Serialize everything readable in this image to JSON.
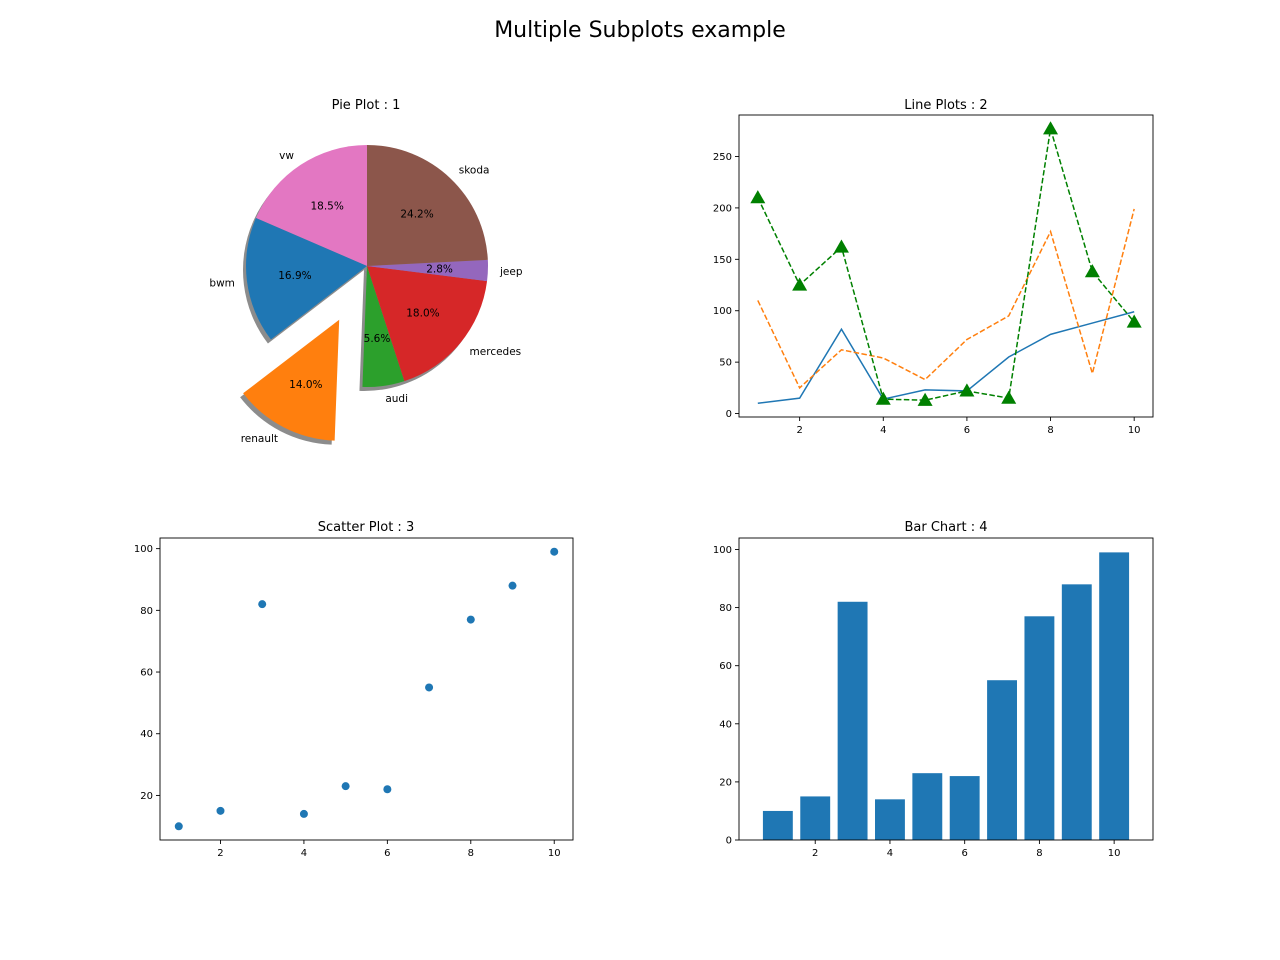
{
  "figure": {
    "title": "Multiple Subplots example"
  },
  "chart_data": [
    {
      "type": "pie",
      "title": "Pie Plot :  1",
      "labels": [
        "vw",
        "bwm",
        "renault",
        "audi",
        "mercedes",
        "jeep",
        "skoda"
      ],
      "values": [
        18.5,
        16.9,
        14.0,
        5.6,
        18.0,
        2.8,
        24.2
      ],
      "value_labels": [
        "18.5%",
        "16.9%",
        "14.0%",
        "5.6%",
        "18.0%",
        "2.8%",
        "24.2%"
      ],
      "exploded": [
        "renault"
      ],
      "shadow": true,
      "colors": [
        "#e377c2",
        "#1f77b4",
        "#ff7f0e",
        "#2ca02c",
        "#d62728",
        "#9467bd",
        "#8c564b"
      ]
    },
    {
      "type": "line",
      "title": "Line Plots : 2",
      "x": [
        1,
        2,
        3,
        4,
        5,
        6,
        7,
        8,
        9,
        10
      ],
      "series": [
        {
          "values": [
            10,
            15,
            82,
            14,
            23,
            22,
            55,
            77,
            88,
            99
          ],
          "color": "#1f77b4",
          "style": "solid"
        },
        {
          "values": [
            110,
            25,
            62,
            54,
            33,
            72,
            95,
            177,
            39,
            199
          ],
          "color": "#ff7f0e",
          "style": "dashed"
        },
        {
          "values": [
            210,
            125,
            162,
            14,
            13,
            22,
            15,
            277,
            138,
            89
          ],
          "color": "#008000",
          "style": "dashed",
          "marker": "triangle"
        }
      ],
      "xlim": [
        0.55,
        10.45
      ],
      "ylim": [
        -3.35,
        290.35
      ],
      "xticks": [
        "2",
        "4",
        "6",
        "8",
        "10"
      ],
      "yticks": [
        "0",
        "50",
        "100",
        "150",
        "200",
        "250"
      ],
      "grid": false
    },
    {
      "type": "scatter",
      "title": "Scatter Plot : 3",
      "x": [
        1,
        2,
        3,
        4,
        5,
        6,
        7,
        8,
        9,
        10
      ],
      "y": [
        10,
        15,
        82,
        14,
        23,
        22,
        55,
        77,
        88,
        99
      ],
      "color": "#1f77b4",
      "xlim": [
        0.55,
        10.45
      ],
      "ylim": [
        5.55,
        103.45
      ],
      "xticks": [
        "2",
        "4",
        "6",
        "8",
        "10"
      ],
      "yticks": [
        "20",
        "40",
        "60",
        "80",
        "100"
      ],
      "grid": false
    },
    {
      "type": "bar",
      "title": "Bar Chart :  4",
      "categories": [
        1,
        2,
        3,
        4,
        5,
        6,
        7,
        8,
        9,
        10
      ],
      "values": [
        10,
        15,
        82,
        14,
        23,
        22,
        55,
        77,
        88,
        99
      ],
      "color": "#1f77b4",
      "xlim": [
        -0.04,
        11.04
      ],
      "ylim": [
        0,
        103.95
      ],
      "xticks": [
        "2",
        "4",
        "6",
        "8",
        "10"
      ],
      "yticks": [
        "0",
        "20",
        "40",
        "60",
        "80",
        "100"
      ],
      "grid": false
    }
  ]
}
